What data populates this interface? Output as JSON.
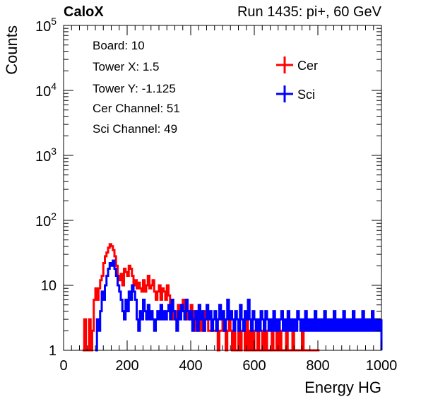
{
  "header": {
    "brand": "CaloX",
    "run_info": "Run 1435: pi+, 60 GeV"
  },
  "info_box": [
    "Board: 10",
    "Tower X: 1.5",
    "Tower Y: -1.125",
    "Cer Channel: 51",
    "Sci Channel: 49"
  ],
  "chart_data": {
    "type": "line",
    "subtype": "step-histogram",
    "xlabel": "Energy HG",
    "ylabel": "Counts",
    "xlim": [
      0,
      1000
    ],
    "ylim": [
      1,
      100000
    ],
    "y_scale": "log",
    "x_ticks": [
      "0",
      "200",
      "400",
      "600",
      "800",
      "1000"
    ],
    "y_ticks": [
      {
        "value": 1,
        "label": "1"
      },
      {
        "value": 10,
        "label": "10"
      },
      {
        "value": 100,
        "label": "10^2"
      },
      {
        "value": 1000,
        "label": "10^3"
      },
      {
        "value": 10000,
        "label": "10^4"
      },
      {
        "value": 100000,
        "label": "10^5"
      }
    ],
    "legend_placement": "top-right",
    "grid": false,
    "series": [
      {
        "name": "Cer",
        "color": "#ff0000",
        "points": [
          [
            60,
            1
          ],
          [
            65,
            3
          ],
          [
            70,
            1
          ],
          [
            75,
            1
          ],
          [
            80,
            3
          ],
          [
            85,
            1
          ],
          [
            90,
            2
          ],
          [
            95,
            6
          ],
          [
            100,
            9
          ],
          [
            105,
            6
          ],
          [
            110,
            9
          ],
          [
            115,
            12
          ],
          [
            120,
            14
          ],
          [
            125,
            22
          ],
          [
            130,
            28
          ],
          [
            135,
            32
          ],
          [
            140,
            38
          ],
          [
            145,
            43
          ],
          [
            150,
            40
          ],
          [
            155,
            35
          ],
          [
            160,
            28
          ],
          [
            165,
            20
          ],
          [
            170,
            14
          ],
          [
            175,
            12
          ],
          [
            180,
            15
          ],
          [
            185,
            10
          ],
          [
            190,
            18
          ],
          [
            195,
            16
          ],
          [
            200,
            14
          ],
          [
            205,
            20
          ],
          [
            210,
            18
          ],
          [
            215,
            14
          ],
          [
            220,
            10
          ],
          [
            225,
            12
          ],
          [
            230,
            9
          ],
          [
            235,
            11
          ],
          [
            240,
            9
          ],
          [
            245,
            8
          ],
          [
            250,
            12
          ],
          [
            255,
            8
          ],
          [
            260,
            10
          ],
          [
            265,
            14
          ],
          [
            270,
            9
          ],
          [
            275,
            10
          ],
          [
            280,
            12
          ],
          [
            285,
            8
          ],
          [
            290,
            6
          ],
          [
            295,
            8
          ],
          [
            300,
            10
          ],
          [
            305,
            6
          ],
          [
            310,
            9
          ],
          [
            315,
            8
          ],
          [
            320,
            6
          ],
          [
            325,
            10
          ],
          [
            330,
            7
          ],
          [
            335,
            5
          ],
          [
            340,
            4
          ],
          [
            345,
            3
          ],
          [
            350,
            4
          ],
          [
            355,
            3
          ],
          [
            360,
            5
          ],
          [
            365,
            4
          ],
          [
            370,
            5
          ],
          [
            375,
            6
          ],
          [
            380,
            4
          ],
          [
            385,
            3
          ],
          [
            390,
            4
          ],
          [
            395,
            3
          ],
          [
            400,
            5
          ],
          [
            405,
            3
          ],
          [
            410,
            4
          ],
          [
            415,
            2
          ],
          [
            420,
            3
          ],
          [
            425,
            3
          ],
          [
            430,
            2
          ],
          [
            435,
            3
          ],
          [
            440,
            2
          ],
          [
            445,
            4
          ],
          [
            450,
            3
          ],
          [
            455,
            2
          ],
          [
            460,
            2
          ],
          [
            465,
            3
          ],
          [
            470,
            2
          ],
          [
            475,
            2
          ],
          [
            480,
            3
          ],
          [
            485,
            1
          ],
          [
            490,
            2
          ],
          [
            495,
            2
          ],
          [
            500,
            3
          ],
          [
            505,
            2
          ],
          [
            510,
            1
          ],
          [
            515,
            2
          ],
          [
            520,
            3
          ],
          [
            525,
            2
          ],
          [
            530,
            1
          ],
          [
            535,
            2
          ],
          [
            540,
            1
          ],
          [
            545,
            1
          ],
          [
            550,
            2
          ],
          [
            555,
            1
          ],
          [
            560,
            2
          ],
          [
            565,
            2
          ],
          [
            570,
            1
          ],
          [
            575,
            3
          ],
          [
            580,
            1
          ],
          [
            585,
            2
          ],
          [
            590,
            1
          ],
          [
            595,
            2
          ],
          [
            600,
            1
          ],
          [
            605,
            1
          ],
          [
            610,
            2
          ],
          [
            615,
            1
          ],
          [
            620,
            1
          ],
          [
            625,
            2
          ],
          [
            630,
            1
          ],
          [
            635,
            2
          ],
          [
            640,
            1
          ],
          [
            645,
            1
          ],
          [
            650,
            1
          ],
          [
            655,
            2
          ],
          [
            660,
            1
          ],
          [
            665,
            1
          ],
          [
            670,
            2
          ],
          [
            675,
            1
          ],
          [
            680,
            2
          ],
          [
            685,
            1
          ],
          [
            690,
            1
          ],
          [
            695,
            1
          ],
          [
            700,
            2
          ],
          [
            705,
            1
          ],
          [
            710,
            1
          ],
          [
            715,
            1
          ],
          [
            720,
            2
          ],
          [
            725,
            1
          ],
          [
            730,
            1
          ],
          [
            735,
            1
          ],
          [
            740,
            1
          ],
          [
            745,
            1
          ],
          [
            750,
            2
          ],
          [
            755,
            1
          ],
          [
            760,
            1
          ],
          [
            765,
            1
          ],
          [
            770,
            1
          ],
          [
            775,
            1
          ],
          [
            780,
            1
          ],
          [
            785,
            1
          ],
          [
            790,
            1
          ],
          [
            795,
            1
          ],
          [
            800,
            1
          ]
        ]
      },
      {
        "name": "Sci",
        "color": "#0000ff",
        "points": [
          [
            100,
            1
          ],
          [
            105,
            3
          ],
          [
            110,
            2
          ],
          [
            115,
            4
          ],
          [
            120,
            8
          ],
          [
            125,
            6
          ],
          [
            130,
            10
          ],
          [
            135,
            14
          ],
          [
            140,
            18
          ],
          [
            145,
            22
          ],
          [
            150,
            20
          ],
          [
            155,
            24
          ],
          [
            160,
            18
          ],
          [
            165,
            14
          ],
          [
            170,
            10
          ],
          [
            175,
            8
          ],
          [
            180,
            6
          ],
          [
            185,
            4
          ],
          [
            190,
            3
          ],
          [
            195,
            6
          ],
          [
            200,
            4
          ],
          [
            205,
            8
          ],
          [
            210,
            6
          ],
          [
            215,
            10
          ],
          [
            220,
            8
          ],
          [
            225,
            6
          ],
          [
            230,
            3
          ],
          [
            235,
            2
          ],
          [
            240,
            4
          ],
          [
            245,
            3
          ],
          [
            250,
            6
          ],
          [
            255,
            4
          ],
          [
            260,
            3
          ],
          [
            265,
            5
          ],
          [
            270,
            3
          ],
          [
            275,
            4
          ],
          [
            280,
            3
          ],
          [
            285,
            2
          ],
          [
            290,
            3
          ],
          [
            295,
            4
          ],
          [
            300,
            3
          ],
          [
            305,
            5
          ],
          [
            310,
            3
          ],
          [
            315,
            4
          ],
          [
            320,
            3
          ],
          [
            325,
            4
          ],
          [
            330,
            5
          ],
          [
            335,
            3
          ],
          [
            340,
            6
          ],
          [
            345,
            4
          ],
          [
            350,
            3
          ],
          [
            355,
            2
          ],
          [
            360,
            4
          ],
          [
            365,
            3
          ],
          [
            370,
            5
          ],
          [
            375,
            4
          ],
          [
            380,
            3
          ],
          [
            385,
            6
          ],
          [
            390,
            4
          ],
          [
            395,
            3
          ],
          [
            400,
            4
          ],
          [
            405,
            2
          ],
          [
            410,
            3
          ],
          [
            415,
            4
          ],
          [
            420,
            2
          ],
          [
            425,
            5
          ],
          [
            430,
            3
          ],
          [
            435,
            4
          ],
          [
            440,
            2
          ],
          [
            445,
            3
          ],
          [
            450,
            5
          ],
          [
            455,
            3
          ],
          [
            460,
            4
          ],
          [
            465,
            2
          ],
          [
            470,
            3
          ],
          [
            475,
            4
          ],
          [
            480,
            2
          ],
          [
            485,
            3
          ],
          [
            490,
            5
          ],
          [
            495,
            3
          ],
          [
            500,
            4
          ],
          [
            505,
            2
          ],
          [
            510,
            3
          ],
          [
            515,
            6
          ],
          [
            520,
            3
          ],
          [
            525,
            4
          ],
          [
            530,
            3
          ],
          [
            535,
            2
          ],
          [
            540,
            4
          ],
          [
            545,
            3
          ],
          [
            550,
            2
          ],
          [
            555,
            5
          ],
          [
            560,
            3
          ],
          [
            565,
            2
          ],
          [
            570,
            4
          ],
          [
            575,
            3
          ],
          [
            580,
            6
          ],
          [
            585,
            3
          ],
          [
            590,
            2
          ],
          [
            595,
            4
          ],
          [
            600,
            3
          ],
          [
            605,
            2
          ],
          [
            610,
            3
          ],
          [
            615,
            2
          ],
          [
            620,
            4
          ],
          [
            625,
            3
          ],
          [
            630,
            2
          ],
          [
            635,
            4
          ],
          [
            640,
            3
          ],
          [
            645,
            2
          ],
          [
            650,
            3
          ],
          [
            655,
            2
          ],
          [
            660,
            4
          ],
          [
            665,
            2
          ],
          [
            670,
            3
          ],
          [
            675,
            2
          ],
          [
            680,
            3
          ],
          [
            685,
            4
          ],
          [
            690,
            2
          ],
          [
            695,
            3
          ],
          [
            700,
            2
          ],
          [
            705,
            4
          ],
          [
            710,
            2
          ],
          [
            715,
            3
          ],
          [
            720,
            2
          ],
          [
            725,
            3
          ],
          [
            730,
            2
          ],
          [
            735,
            4
          ],
          [
            740,
            3
          ],
          [
            745,
            2
          ],
          [
            750,
            3
          ],
          [
            755,
            2
          ],
          [
            760,
            4
          ],
          [
            765,
            2
          ],
          [
            770,
            3
          ],
          [
            775,
            2
          ],
          [
            780,
            3
          ],
          [
            785,
            2
          ],
          [
            790,
            4
          ],
          [
            795,
            2
          ],
          [
            800,
            3
          ],
          [
            805,
            2
          ],
          [
            810,
            3
          ],
          [
            815,
            2
          ],
          [
            820,
            4
          ],
          [
            825,
            2
          ],
          [
            830,
            3
          ],
          [
            835,
            2
          ],
          [
            840,
            3
          ],
          [
            845,
            2
          ],
          [
            850,
            4
          ],
          [
            855,
            2
          ],
          [
            860,
            3
          ],
          [
            865,
            2
          ],
          [
            870,
            3
          ],
          [
            875,
            2
          ],
          [
            880,
            4
          ],
          [
            885,
            2
          ],
          [
            890,
            3
          ],
          [
            895,
            2
          ],
          [
            900,
            3
          ],
          [
            905,
            2
          ],
          [
            910,
            4
          ],
          [
            915,
            2
          ],
          [
            920,
            3
          ],
          [
            925,
            2
          ],
          [
            930,
            3
          ],
          [
            935,
            2
          ],
          [
            940,
            4
          ],
          [
            945,
            2
          ],
          [
            950,
            3
          ],
          [
            955,
            2
          ],
          [
            960,
            3
          ],
          [
            965,
            2
          ],
          [
            970,
            4
          ],
          [
            975,
            2
          ],
          [
            980,
            3
          ],
          [
            985,
            2
          ],
          [
            990,
            3
          ],
          [
            995,
            2
          ],
          [
            1000,
            3
          ]
        ]
      }
    ]
  }
}
